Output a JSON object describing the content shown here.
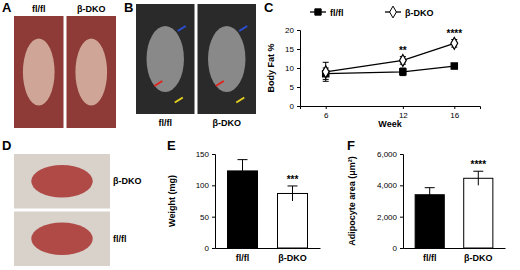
{
  "chart_data": [
    {
      "type": "image",
      "title": "A",
      "labels": [
        "fl/fl",
        "β-DKO"
      ]
    },
    {
      "type": "image",
      "title": "B",
      "labels": [
        "fl/fl",
        "β-DKO"
      ]
    },
    {
      "type": "line",
      "title": "C",
      "x": [
        6,
        12,
        16
      ],
      "xlim": [
        4,
        18
      ],
      "xticks": [
        6,
        12,
        16
      ],
      "x_label": "Week",
      "y_label": "Body Fat %",
      "ylim": [
        0,
        20
      ],
      "yticks": [
        0,
        5,
        10,
        15,
        20
      ],
      "legend": "top",
      "series": [
        {
          "name": "fl/fl",
          "color": "#000000",
          "marker": "square",
          "values": [
            8.5,
            9,
            10.5
          ],
          "errors": [
            1.5,
            1,
            0.6
          ]
        },
        {
          "name": "β-DKO",
          "color": "#000000",
          "marker": "diamond-open",
          "values": [
            9,
            12,
            16.5
          ],
          "errors": [
            2.5,
            1,
            1
          ]
        }
      ],
      "annotations": [
        {
          "x": 12,
          "text": "**"
        },
        {
          "x": 16,
          "text": "****"
        }
      ]
    },
    {
      "type": "image",
      "title": "D",
      "labels": [
        "β-DKO",
        "fl/fl"
      ]
    },
    {
      "type": "bar",
      "title": "E",
      "categories": [
        "fl/fl",
        "β-DKO"
      ],
      "values": [
        123,
        87
      ],
      "errors": [
        18,
        12
      ],
      "colors": [
        "#000000",
        "#ffffff"
      ],
      "y_label": "Weight (mg)",
      "ylim": [
        0,
        150
      ],
      "yticks": [
        0,
        50,
        100,
        150
      ],
      "annotations": [
        {
          "x": "β-DKO",
          "text": "***"
        }
      ]
    },
    {
      "type": "bar",
      "title": "F",
      "categories": [
        "fl/fl",
        "β-DKO"
      ],
      "values": [
        3400,
        4450
      ],
      "errors": [
        450,
        450
      ],
      "colors": [
        "#000000",
        "#ffffff"
      ],
      "y_label": "Adipocyte area (μm²)",
      "ylim": [
        0,
        6000
      ],
      "yticks": [
        0,
        {
          "value": 2000,
          "label": "2,000"
        },
        {
          "value": 4000,
          "label": "4,000"
        },
        {
          "value": 6000,
          "label": "6,000"
        }
      ],
      "annotations": [
        {
          "x": "β-DKO",
          "text": "****"
        }
      ]
    }
  ]
}
